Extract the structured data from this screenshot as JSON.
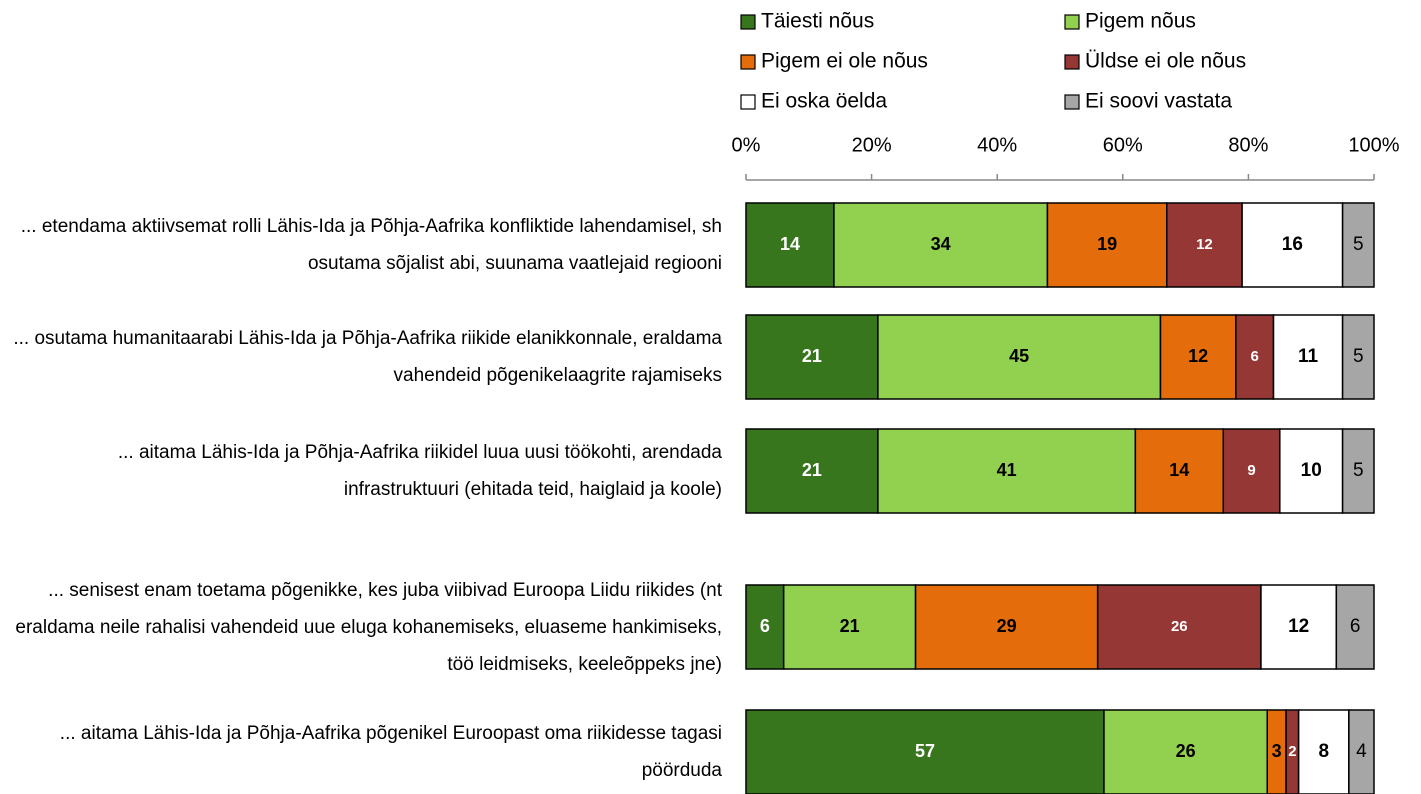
{
  "chart_data": {
    "type": "stacked-bar-horizontal",
    "categories": [
      "... etendama aktiivsemat rolli Lähis-Ida ja Põhja-Aafrika konfliktide lahendamisel, sh osutama sõjalist abi, suunama vaatlejaid regiooni",
      "... osutama humanitaarabi Lähis-Ida ja Põhja-Aafrika riikide elanikkonnale, eraldama vahendeid põgenikelaagrite rajamiseks",
      "... aitama Lähis-Ida ja Põhja-Aafrika riikidel luua uusi töökohti, arendada infrastruktuuri (ehitada teid, haiglaid ja koole)",
      "... senisest enam toetama põgenikke, kes juba viibivad Euroopa Liidu riikides (nt eraldama neile rahalisi vahendeid uue eluga kohanemiseks, eluaseme hankimiseks, töö leidmiseks, keeleõppeks jne)",
      "... aitama Lähis-Ida ja Põhja-Aafrika põgenikel Euroopast oma riikidesse tagasi pöörduda"
    ],
    "series": [
      {
        "name": "Täiesti nõus",
        "color": "#38761d",
        "values": [
          14,
          21,
          21,
          6,
          57
        ]
      },
      {
        "name": "Pigem nõus",
        "color": "#92d050",
        "values": [
          34,
          45,
          41,
          21,
          26
        ]
      },
      {
        "name": "Pigem ei ole nõus",
        "color": "#e46c0a",
        "values": [
          19,
          12,
          14,
          29,
          3
        ]
      },
      {
        "name": "Üldse ei ole nõus",
        "color": "#953735",
        "values": [
          12,
          6,
          9,
          26,
          2
        ]
      },
      {
        "name": "Ei oska öelda",
        "color": "#ffffff",
        "values": [
          16,
          11,
          10,
          12,
          8
        ]
      },
      {
        "name": "Ei soovi vastata",
        "color": "#a6a6a6",
        "values": [
          5,
          5,
          5,
          6,
          4
        ]
      }
    ],
    "xlim": [
      0,
      100
    ],
    "xticks": [
      {
        "value": 0,
        "label": "0%"
      },
      {
        "value": 20,
        "label": "20%"
      },
      {
        "value": 40,
        "label": "40%"
      },
      {
        "value": 60,
        "label": "60%"
      },
      {
        "value": 80,
        "label": "80%"
      },
      {
        "value": 100,
        "label": "100%"
      }
    ],
    "legend": "top"
  }
}
